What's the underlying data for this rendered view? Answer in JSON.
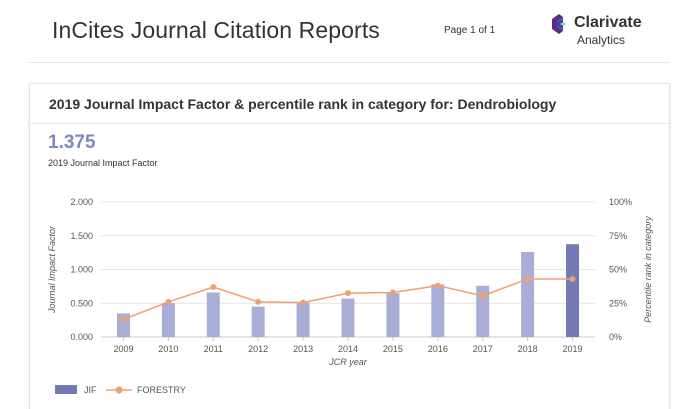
{
  "header": {
    "app_title": "InCites Journal Citation Reports",
    "page_info": "Page 1 of 1",
    "brand_name": "Clarivate",
    "brand_sub": "Analytics"
  },
  "card": {
    "title": "2019 Journal Impact Factor & percentile rank in category for: Dendrobiology",
    "metric_value": "1.375",
    "metric_label": "2019 Journal Impact Factor"
  },
  "colors": {
    "bar": "#a9aed7",
    "bar_highlight": "#7379b6",
    "line": "#f0a070",
    "grid": "#e4e4e4",
    "axis_text": "#555555"
  },
  "chart_data": {
    "type": "bar",
    "xlabel": "JCR year",
    "ylabel": "Journal Impact Factor",
    "y2label": "Percentile rank in category",
    "categories": [
      "2009",
      "2010",
      "2011",
      "2012",
      "2013",
      "2014",
      "2015",
      "2016",
      "2017",
      "2018",
      "2019"
    ],
    "ylim": [
      0,
      2
    ],
    "yticks": [
      "0.000",
      "0.500",
      "1.000",
      "1.500",
      "2.000"
    ],
    "y2lim": [
      0,
      100
    ],
    "y2ticks": [
      "0%",
      "25%",
      "50%",
      "75%",
      "100%"
    ],
    "grid": true,
    "legend_position": "bottom-left",
    "series": [
      {
        "name": "JIF",
        "type": "bar",
        "axis": "left",
        "values": [
          0.35,
          0.5,
          0.66,
          0.45,
          0.51,
          0.57,
          0.65,
          0.78,
          0.76,
          1.26,
          1.375
        ]
      },
      {
        "name": "FORESTRY",
        "type": "line",
        "axis": "right",
        "values": [
          13,
          26,
          37,
          26,
          25.5,
          32.5,
          33,
          38,
          30.5,
          43,
          43
        ]
      }
    ]
  }
}
